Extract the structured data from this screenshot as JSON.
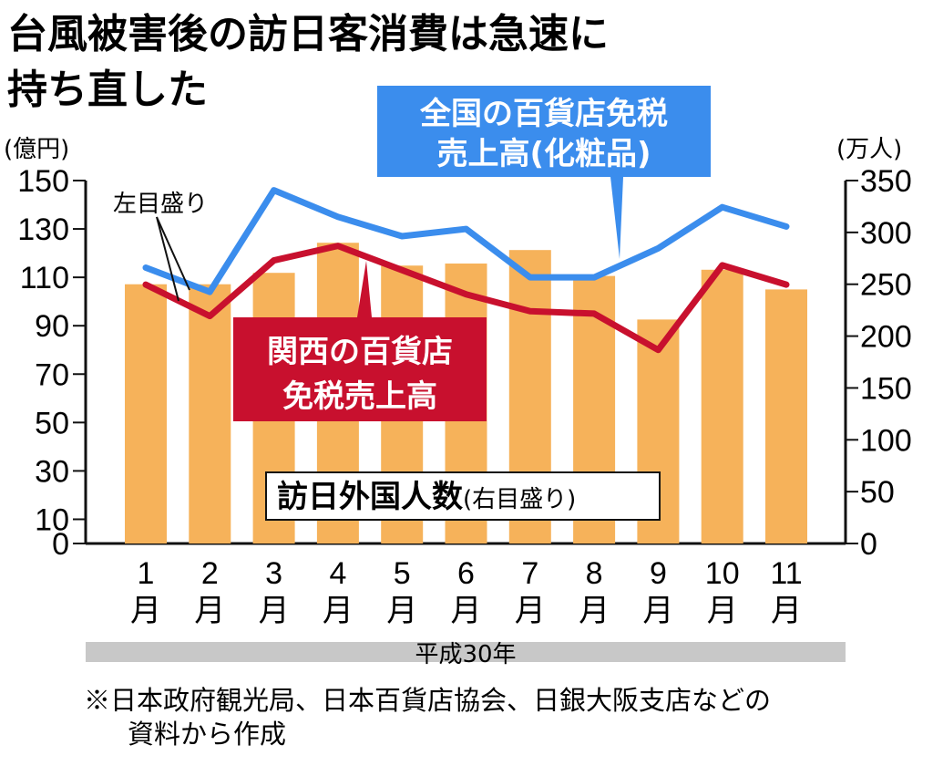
{
  "title_line1": "台風被害後の訪日客消費は急速に",
  "title_line2": "持ち直した",
  "footnote_line1": "※日本政府観光局、日本百貨店協会、日銀大阪支店などの",
  "footnote_line2": "資料から作成",
  "colors": {
    "bar": "#f6b25a",
    "kansai_line": "#c8102e",
    "national_line": "#3b8ded",
    "era_band": "#c8c8c8"
  },
  "chart_data": {
    "type": "bar+line",
    "categories": [
      "1\n月",
      "2\n月",
      "3\n月",
      "4\n月",
      "5\n月",
      "6\n月",
      "7\n月",
      "8\n月",
      "9\n月",
      "10\n月",
      "11\n月"
    ],
    "category_numbers": [
      "1",
      "2",
      "3",
      "4",
      "5",
      "6",
      "7",
      "8",
      "9",
      "10",
      "11"
    ],
    "month_char": "月",
    "era_label": "平成30年",
    "left_axis": {
      "unit": "(億円)",
      "ticks": [
        0,
        10,
        30,
        50,
        70,
        90,
        110,
        130,
        150
      ],
      "range": [
        0,
        150
      ]
    },
    "right_axis": {
      "unit": "(万人)",
      "ticks": [
        0,
        50,
        100,
        150,
        200,
        250,
        300,
        350
      ],
      "range": [
        0,
        350
      ]
    },
    "series": [
      {
        "name": "訪日外国人数",
        "name_suffix": "(右目盛り)",
        "type": "bar",
        "axis": "right",
        "values": [
          250,
          250,
          261,
          290,
          268,
          270,
          283,
          258,
          216,
          264,
          245
        ]
      },
      {
        "name": "関西の百貨店免税売上高",
        "label_lines": [
          "関西の百貨店",
          "免税売上高"
        ],
        "type": "line",
        "axis": "left",
        "values": [
          107,
          94,
          117,
          123,
          113,
          103,
          96,
          95,
          80,
          115,
          107
        ]
      },
      {
        "name": "全国の百貨店免税売上高(化粧品)",
        "label_lines": [
          "全国の百貨店免税",
          "売上高(化粧品)"
        ],
        "type": "line",
        "axis": "left",
        "values": [
          114,
          104,
          146,
          135,
          127,
          130,
          110,
          110,
          122,
          139,
          131
        ]
      }
    ],
    "annotation_left_axis": "左目盛り"
  }
}
